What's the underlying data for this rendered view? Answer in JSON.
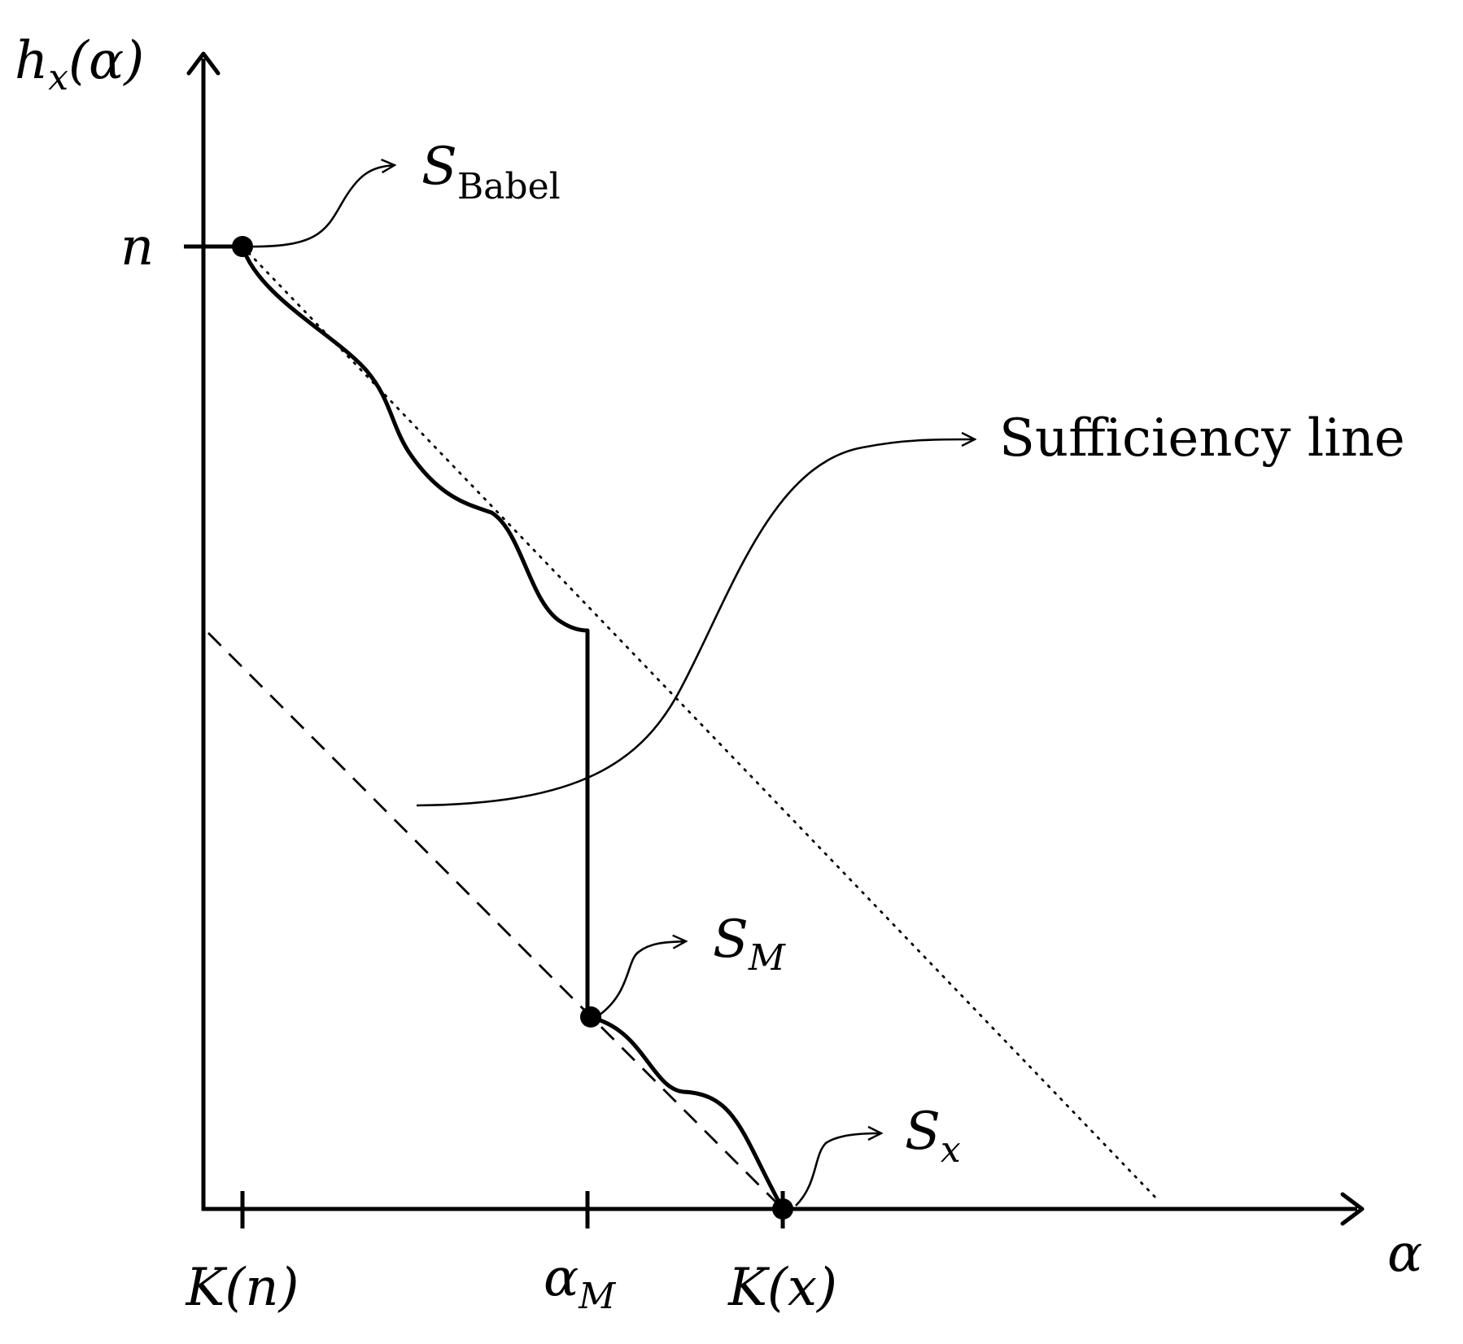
{
  "axes": {
    "y_label": {
      "main": "h",
      "sub": "x",
      "arg": "(α)"
    },
    "x_label": "α",
    "y_tick": "n",
    "x_ticks": [
      {
        "main": "K(n)",
        "sub": ""
      },
      {
        "main": "α",
        "sub": "M"
      },
      {
        "main": "K(x)",
        "sub": ""
      }
    ]
  },
  "annotations": {
    "babel": {
      "main": "S",
      "sub": "Babel"
    },
    "sufficiency": "Sufficiency line",
    "model": {
      "main": "S",
      "sub": "M"
    },
    "singleton": {
      "main": "S",
      "sub": "x"
    }
  }
}
